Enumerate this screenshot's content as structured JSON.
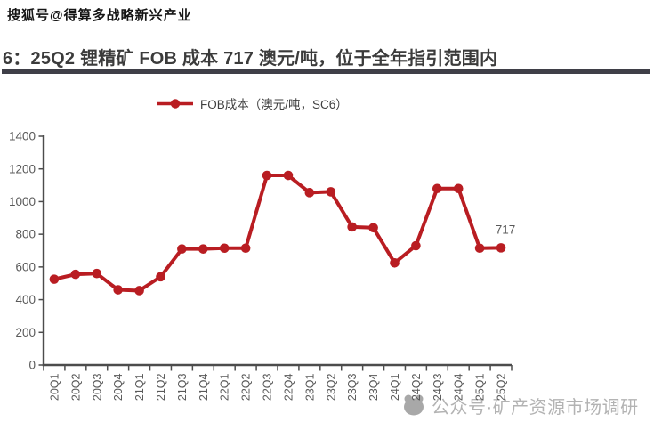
{
  "watermarks": {
    "top": "搜狐号@得算多战略新兴产业",
    "bottom": "公众号·矿产资源市场调研"
  },
  "title": "6：25Q2 锂精矿 FOB 成本 717 澳元/吨，位于全年指引范围内",
  "legend": {
    "label": "FOB成本（澳元/吨，SC6）"
  },
  "colors": {
    "line": "#b91d22",
    "axis": "#4c4c4c",
    "tick_label": "#595959",
    "title": "#3b3b3b",
    "title_underline": "#3f3f48",
    "watermark_bottom": "#b3b3b3",
    "watermark_logo": "#a8a8a8"
  },
  "chart_data": {
    "type": "line",
    "title": "25Q2 锂精矿 FOB 成本 717 澳元/吨，位于全年指引范围内",
    "xlabel": "",
    "ylabel": "",
    "categories": [
      "20Q1",
      "20Q2",
      "20Q3",
      "20Q4",
      "21Q1",
      "21Q2",
      "21Q3",
      "21Q4",
      "22Q1",
      "22Q2",
      "22Q3",
      "22Q4",
      "23Q1",
      "23Q2",
      "23Q3",
      "23Q4",
      "24Q1",
      "24Q2",
      "24Q3",
      "24Q4",
      "25Q1",
      "25Q2"
    ],
    "series": [
      {
        "name": "FOB成本（澳元/吨，SC6）",
        "values": [
          525,
          555,
          560,
          460,
          455,
          540,
          710,
          710,
          715,
          715,
          1160,
          1160,
          1055,
          1060,
          845,
          840,
          625,
          730,
          1080,
          1080,
          715,
          717
        ]
      }
    ],
    "ylim": [
      0,
      1400
    ],
    "ytick_step": 200,
    "grid": false,
    "legend_position": "top",
    "annotations": [
      {
        "text": "717",
        "category": "25Q2"
      }
    ]
  }
}
